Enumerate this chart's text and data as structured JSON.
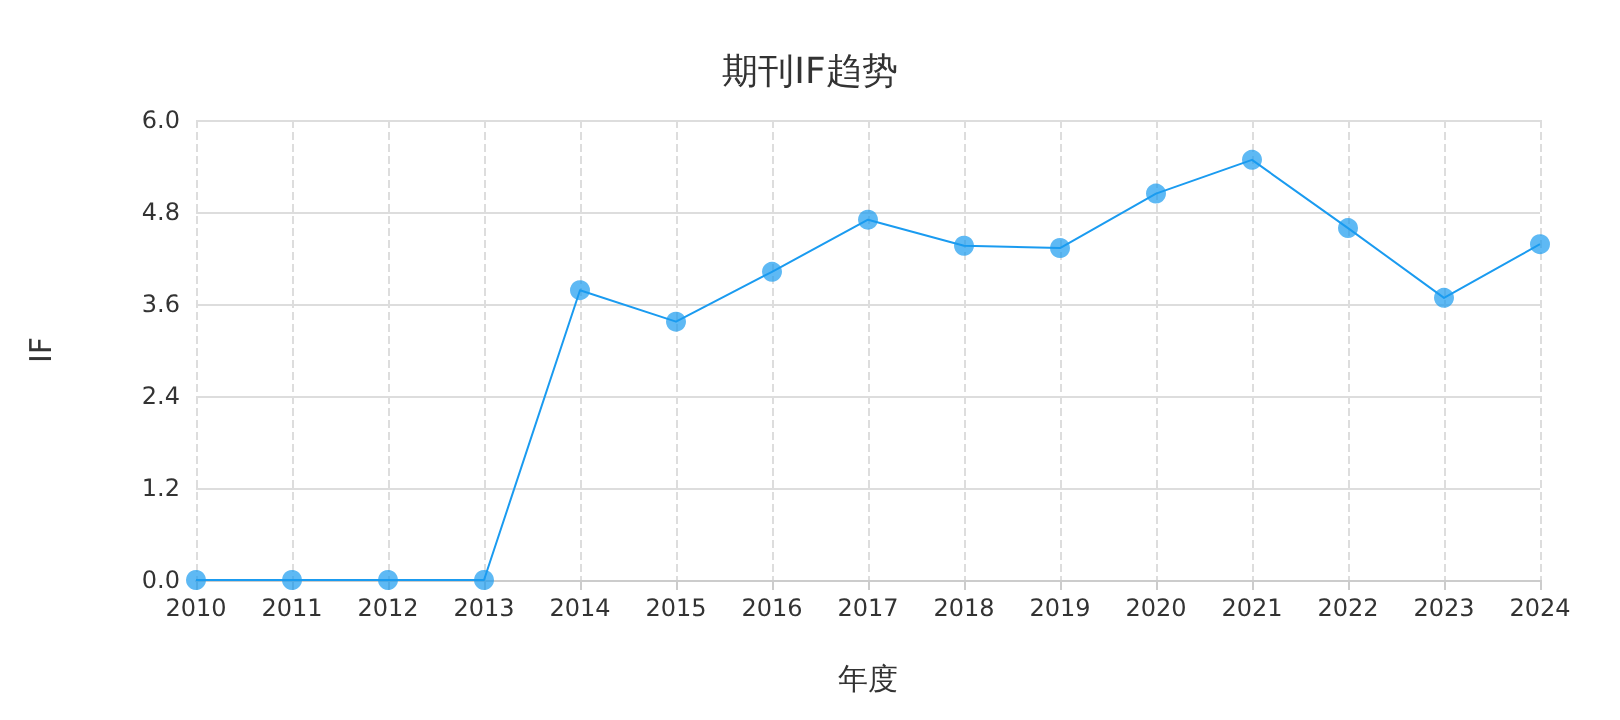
{
  "chart_data": {
    "type": "line",
    "title": "期刊IF趋势",
    "xlabel": "年度",
    "ylabel": "IF",
    "categories": [
      "2010",
      "2011",
      "2012",
      "2013",
      "2014",
      "2015",
      "2016",
      "2017",
      "2018",
      "2019",
      "2020",
      "2021",
      "2022",
      "2023",
      "2024"
    ],
    "series": [
      {
        "color": "#1a9bf0",
        "values": [
          0,
          0,
          0,
          0,
          3.78,
          3.37,
          4.02,
          4.7,
          4.36,
          4.33,
          5.04,
          5.48,
          4.59,
          3.68,
          4.38
        ]
      }
    ],
    "ylim": [
      0,
      6
    ],
    "yticks": [
      {
        "value": 0,
        "label": "0.0"
      },
      {
        "value": 1.2,
        "label": "1.2"
      },
      {
        "value": 2.4,
        "label": "2.4"
      },
      {
        "value": 3.6,
        "label": "3.6"
      },
      {
        "value": 4.8,
        "label": "4.8"
      },
      {
        "value": 6,
        "label": "6.0"
      }
    ],
    "grid": true,
    "marker": "circle",
    "line_style": "solid"
  }
}
